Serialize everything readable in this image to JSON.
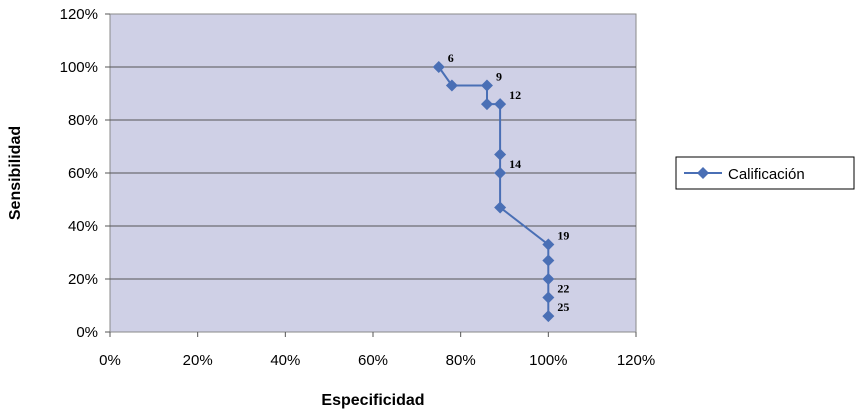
{
  "chart_data": {
    "type": "scatter",
    "title": "",
    "xlabel": "Especificidad",
    "ylabel": "Sensibilidad",
    "xlim": [
      0,
      120
    ],
    "ylim": [
      0,
      120
    ],
    "x_ticks": [
      "0%",
      "20%",
      "40%",
      "60%",
      "80%",
      "100%",
      "120%"
    ],
    "y_ticks": [
      "0%",
      "20%",
      "40%",
      "60%",
      "80%",
      "100%",
      "120%"
    ],
    "grid": "horizontal",
    "legend_position": "right",
    "series_color": "#4a6fb5",
    "plot_background": "#cfd0e6",
    "series": [
      {
        "name": "Calificación",
        "line": "connected",
        "marker": "diamond",
        "points": [
          {
            "x": 75,
            "y": 100,
            "label": "6"
          },
          {
            "x": 78,
            "y": 93
          },
          {
            "x": 86,
            "y": 93,
            "label": "9"
          },
          {
            "x": 86,
            "y": 86
          },
          {
            "x": 89,
            "y": 86,
            "label": "12"
          },
          {
            "x": 89,
            "y": 67
          },
          {
            "x": 89,
            "y": 60,
            "label": "14"
          },
          {
            "x": 89,
            "y": 47
          },
          {
            "x": 100,
            "y": 33,
            "label": "19"
          },
          {
            "x": 100,
            "y": 27
          },
          {
            "x": 100,
            "y": 20
          },
          {
            "x": 100,
            "y": 13,
            "label": "22"
          },
          {
            "x": 100,
            "y": 6,
            "label": "25"
          }
        ]
      }
    ]
  }
}
